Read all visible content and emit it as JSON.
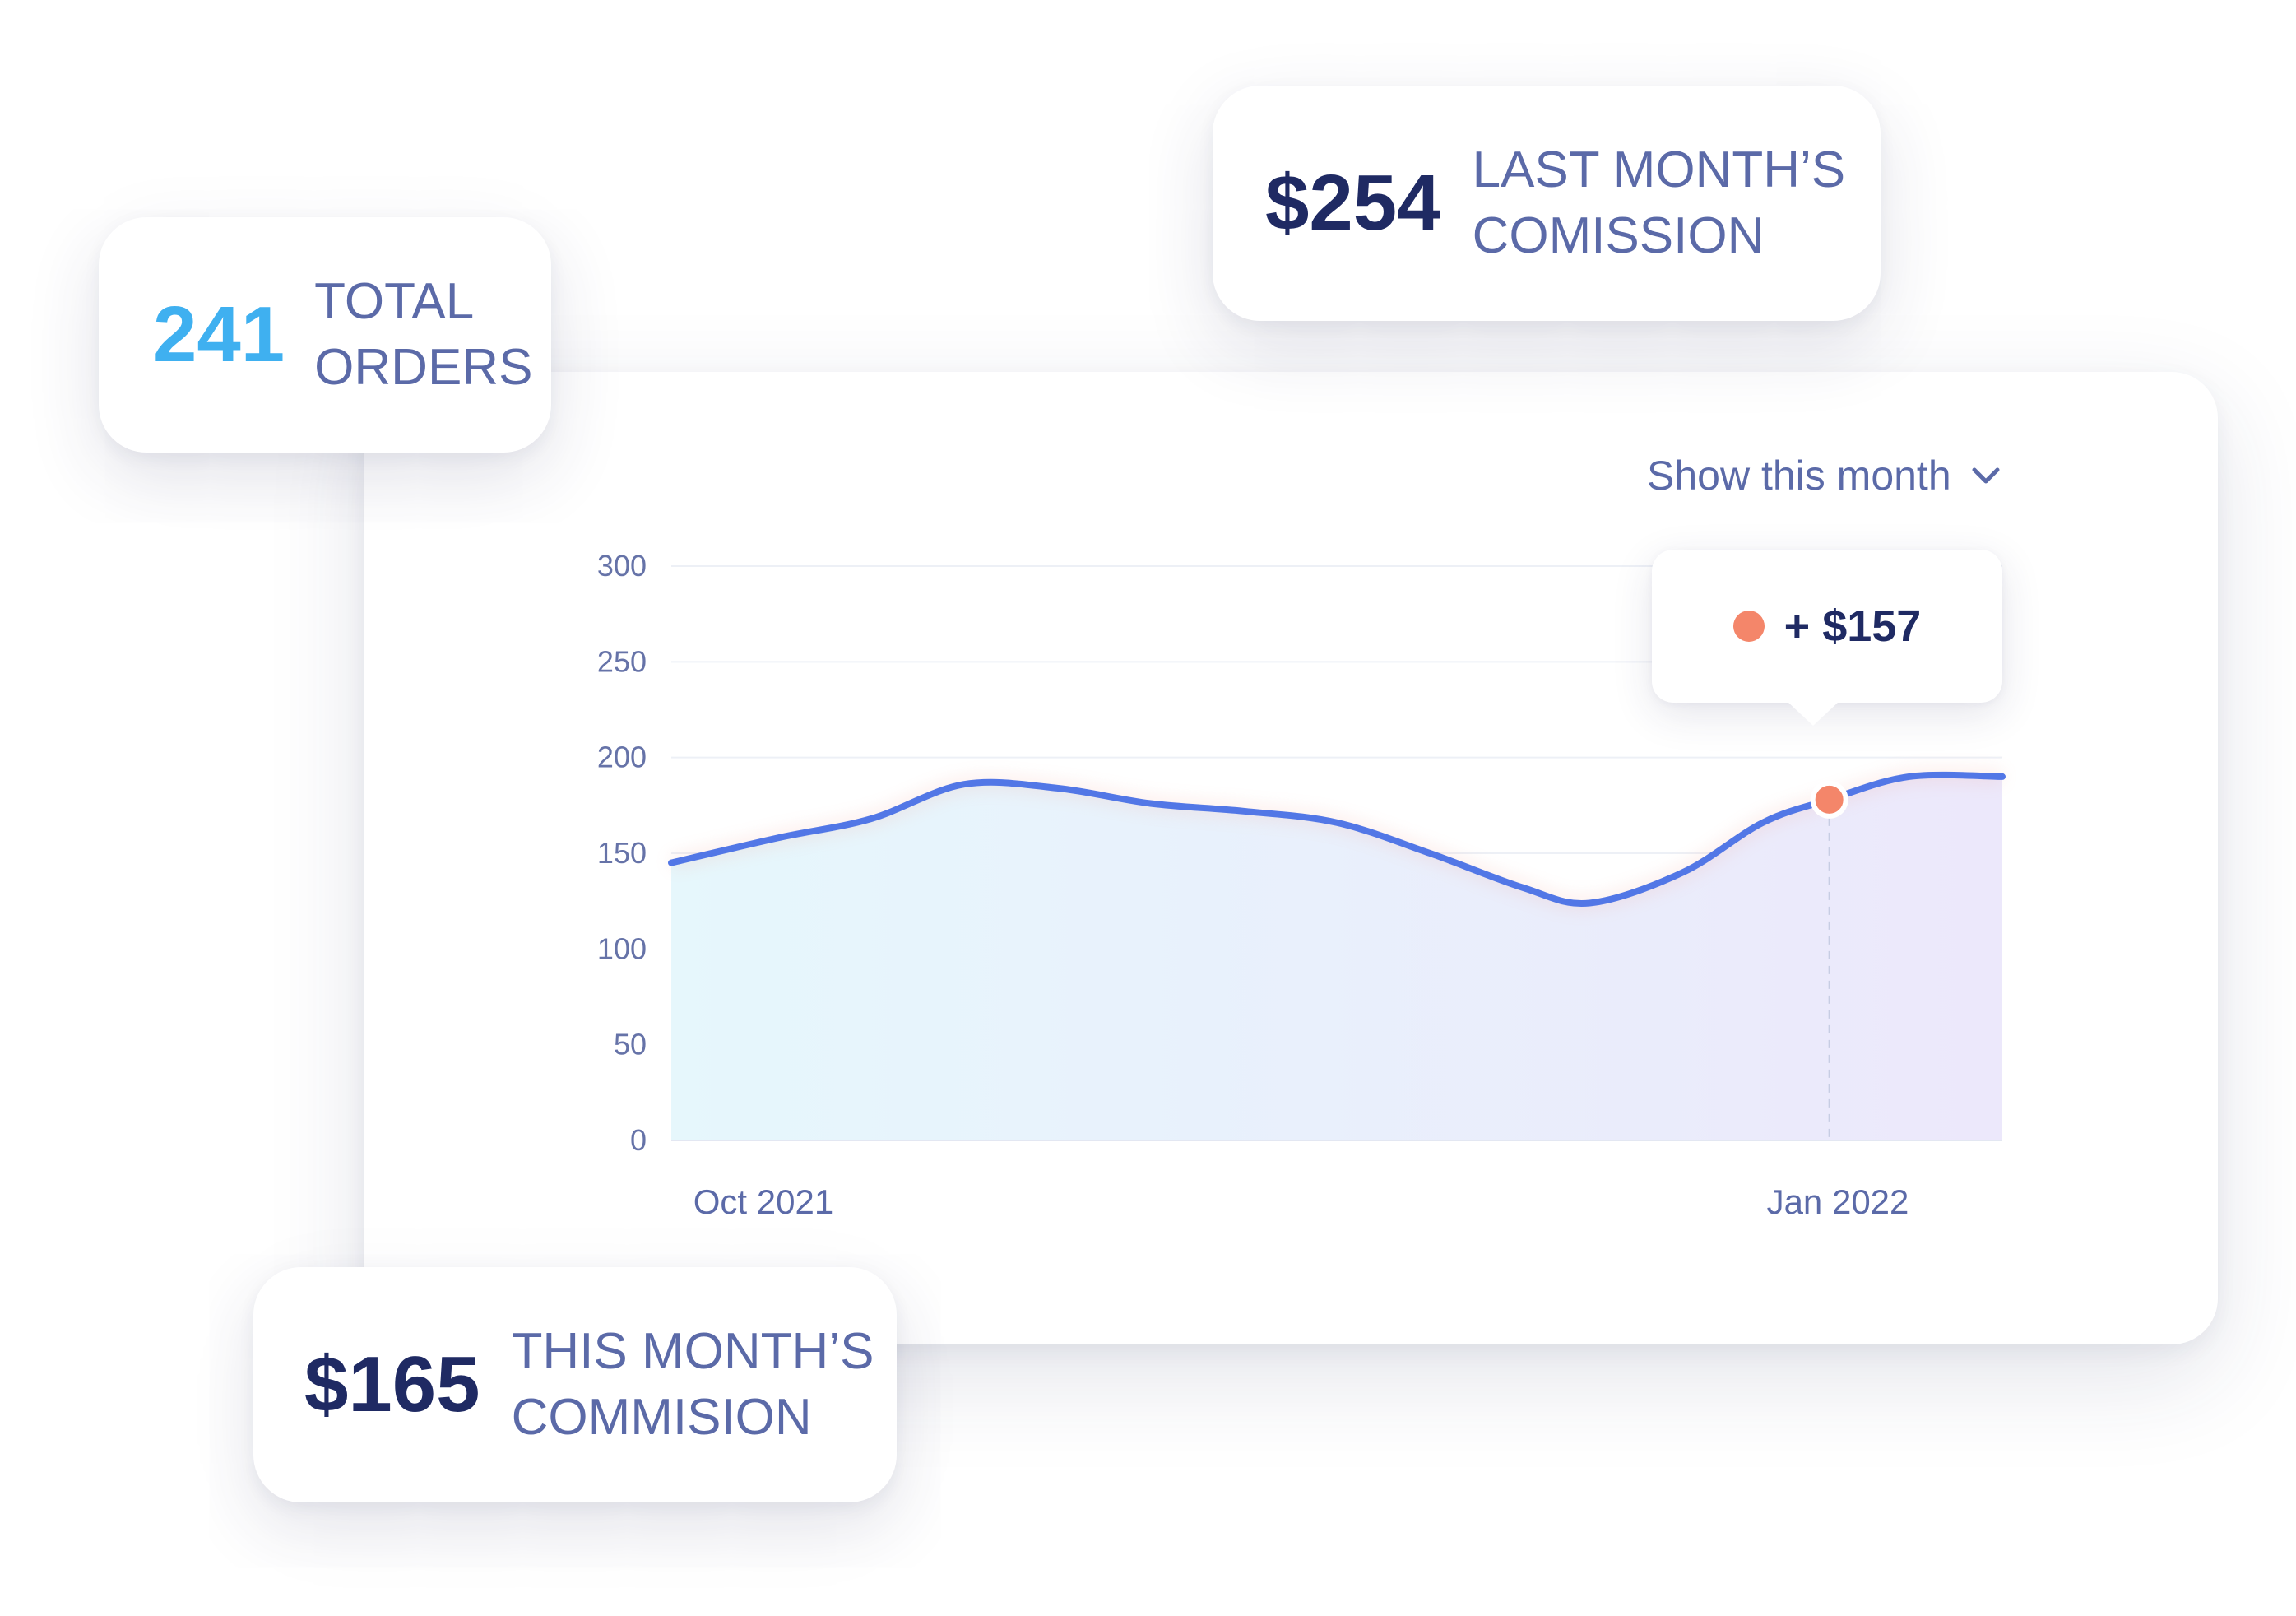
{
  "stats": {
    "total_orders": {
      "value": "241",
      "label_line1": "TOTAL",
      "label_line2": "ORDERS"
    },
    "last_month_commission": {
      "value": "$254",
      "label_line1": "LAST MONTH’S",
      "label_line2": "COMISSION"
    },
    "this_month_commission": {
      "value": "$165",
      "label_line1": "THIS MONTH’S",
      "label_line2": "COMMISION"
    }
  },
  "period_selector": {
    "selected": "Show this month",
    "icon": "chevron-down-icon"
  },
  "tooltip": {
    "value": "+ $157",
    "marker_color": "#f4866a"
  },
  "colors": {
    "line": "#5277e6",
    "accent_blue": "#3fb0f0",
    "dark_text": "#1f2a63",
    "muted_text": "#5b6aa8",
    "highlight_point": "#f4866a"
  },
  "chart_data": {
    "type": "area",
    "y_ticks": [
      "300",
      "250",
      "200",
      "150",
      "100",
      "50",
      "0"
    ],
    "ylim": [
      0,
      300
    ],
    "x_tick_labels": [
      "Oct 2021",
      "Jan 2022"
    ],
    "grid": true,
    "series": [
      {
        "values": [
          [
            0,
            145
          ],
          [
            8,
            158
          ],
          [
            15,
            168
          ],
          [
            22,
            186
          ],
          [
            29,
            184
          ],
          [
            36,
            176
          ],
          [
            43,
            172
          ],
          [
            50,
            166
          ],
          [
            57,
            150
          ],
          [
            64,
            132
          ],
          [
            69,
            124
          ],
          [
            76,
            140
          ],
          [
            82,
            166
          ],
          [
            87,
            178
          ],
          [
            93,
            190
          ],
          [
            100,
            190
          ]
        ]
      }
    ],
    "highlight": {
      "x": 87,
      "y": 178
    }
  }
}
